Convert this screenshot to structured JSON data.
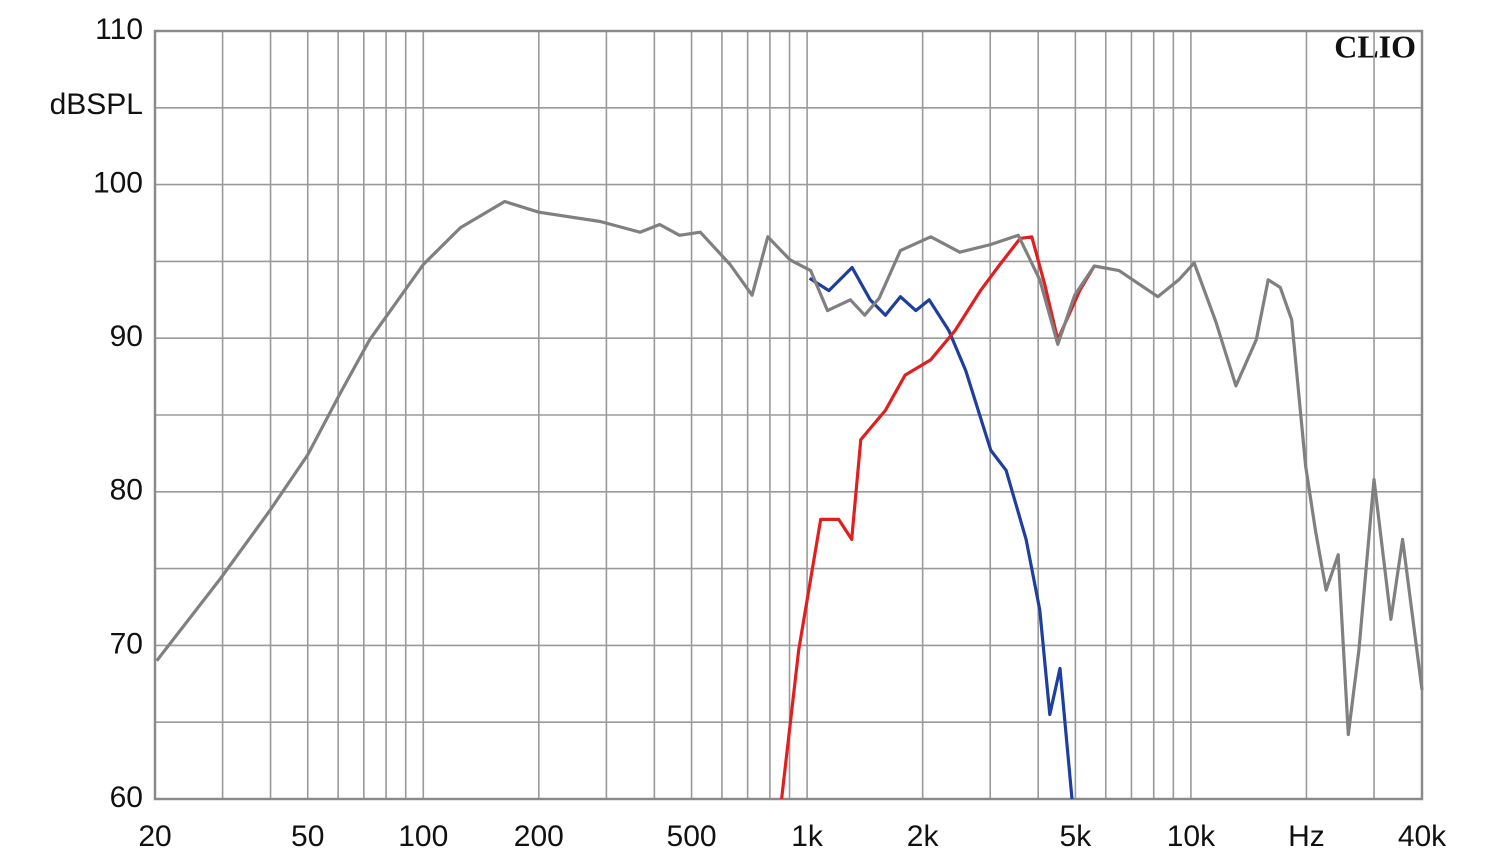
{
  "chart_data": {
    "type": "line",
    "ylabel": "dBSPL",
    "annotation": "CLIO",
    "xscale": "log",
    "grid": true,
    "xlim": [
      20,
      40000
    ],
    "ylim": [
      60,
      110
    ],
    "xticks": [
      20,
      50,
      100,
      200,
      500,
      {
        "value": 1000,
        "label": "1k"
      },
      {
        "value": 2000,
        "label": "2k"
      },
      {
        "value": 5000,
        "label": "5k"
      },
      {
        "value": 10000,
        "label": "10k"
      },
      {
        "value": 20000,
        "label": "Hz"
      },
      {
        "value": 40000,
        "label": "40k"
      }
    ],
    "minor_xticks": [
      30,
      40,
      60,
      70,
      80,
      90,
      300,
      400,
      600,
      700,
      800,
      900,
      3000,
      4000,
      6000,
      7000,
      8000,
      9000,
      30000
    ],
    "yticks": [
      60,
      70,
      80,
      90,
      100,
      110
    ],
    "minor_yticks": [
      65,
      75,
      85,
      95,
      105
    ],
    "series": [
      {
        "color": "#1f3fa0",
        "x": [
          1015,
          1140,
          1310,
          1460,
          1600,
          1750,
          1920,
          2080,
          2340,
          2590,
          3010,
          3300,
          3720,
          4040,
          4290,
          4560,
          4900
        ],
        "values": [
          93.9,
          93.1,
          94.6,
          92.5,
          91.5,
          92.7,
          91.8,
          92.5,
          90.5,
          87.9,
          82.7,
          81.4,
          76.9,
          72.3,
          65.5,
          68.5,
          60
        ]
      },
      {
        "color": "#e02020",
        "x": [
          858,
          951,
          1085,
          1209,
          1307,
          1380,
          1600,
          1800,
          2100,
          2430,
          2830,
          3180,
          3590,
          3850,
          4160,
          4500,
          5130,
          5600
        ],
        "values": [
          60,
          69.7,
          78.2,
          78.2,
          76.9,
          83.4,
          85.3,
          87.6,
          88.6,
          90.5,
          93.1,
          94.8,
          96.5,
          96.6,
          93.5,
          89.9,
          93.1,
          94.7
        ]
      },
      {
        "color": "#808080",
        "x": [
          20.2,
          29.5,
          39.9,
          50,
          60.7,
          72.5,
          100,
          125,
          163,
          200,
          289,
          367,
          413,
          465,
          527,
          630,
          719,
          790,
          903,
          1022,
          1130,
          1297,
          1413,
          1540,
          1750,
          2100,
          2500,
          3010,
          3550,
          4040,
          4500,
          4980,
          5600,
          6500,
          8200,
          9300,
          10200,
          11600,
          13100,
          14800,
          15900,
          17100,
          18300,
          19900,
          21100,
          22500,
          24200,
          25700,
          27400,
          30000,
          33200,
          35600,
          40000
        ],
        "values": [
          69.0,
          74.3,
          78.8,
          82.4,
          86.4,
          89.9,
          94.8,
          97.2,
          98.9,
          98.2,
          97.6,
          96.9,
          97.4,
          96.7,
          96.9,
          94.8,
          92.8,
          96.6,
          95.1,
          94.4,
          91.8,
          92.5,
          91.5,
          92.6,
          95.7,
          96.6,
          95.6,
          96.1,
          96.7,
          93.8,
          89.6,
          92.8,
          94.7,
          94.4,
          92.7,
          93.8,
          94.9,
          91.1,
          86.9,
          89.9,
          93.8,
          93.3,
          91.2,
          81.7,
          77.5,
          73.6,
          75.9,
          64.2,
          69.7,
          80.8,
          71.7,
          76.9,
          67.1
        ]
      }
    ]
  }
}
